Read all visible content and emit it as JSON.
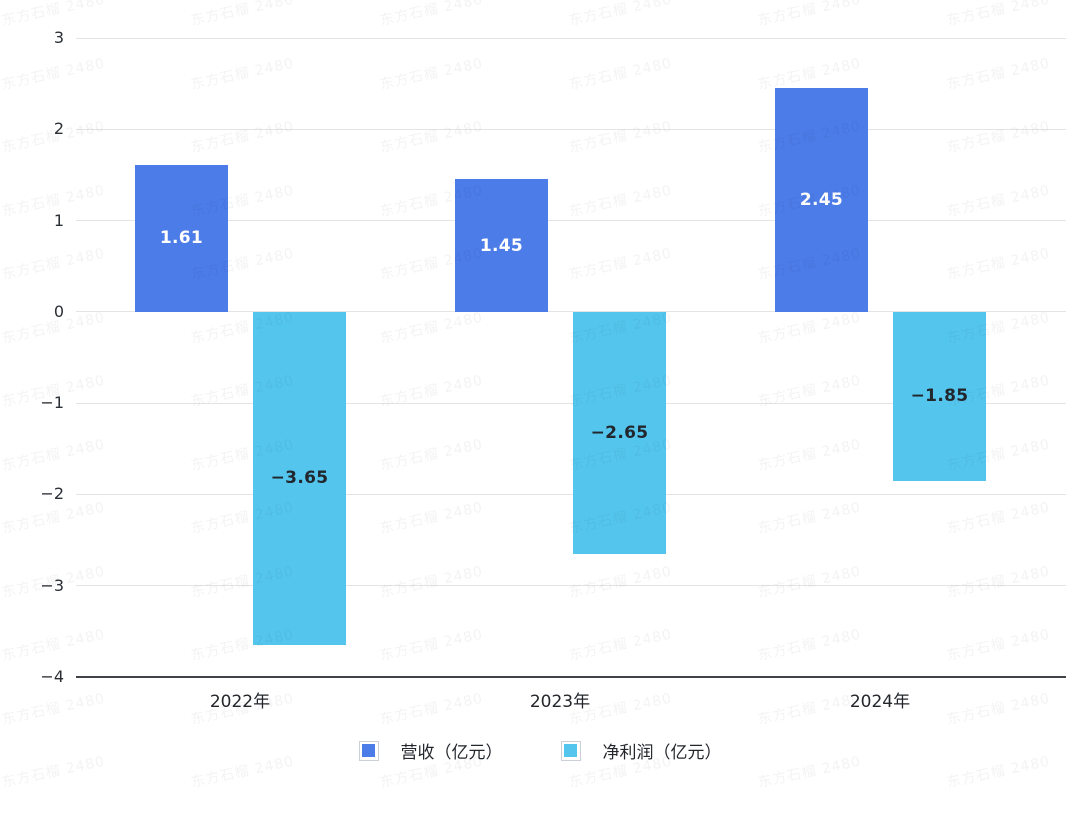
{
  "watermark": {
    "text": "东方石榴 2480",
    "color": "rgba(20,24,31,0.05)"
  },
  "chart_data": {
    "type": "bar",
    "categories": [
      "2022年",
      "2023年",
      "2024年"
    ],
    "series": [
      {
        "key": "revenue",
        "name": "营收（亿元）",
        "color": "#4c7ce8",
        "label_color": "#ffffff",
        "values": [
          1.61,
          1.45,
          2.45
        ],
        "labels": [
          "1.61",
          "1.45",
          "2.45"
        ]
      },
      {
        "key": "net-profit",
        "name": "净利润（亿元）",
        "color": "#54c6ee",
        "label_color": "#22262d",
        "values": [
          -3.65,
          -2.65,
          -1.85
        ],
        "labels": [
          "−3.65",
          "−2.65",
          "−1.85"
        ]
      }
    ],
    "title": "",
    "xlabel": "",
    "ylabel": "",
    "ylim": [
      -4,
      3
    ],
    "yticks": [
      {
        "value": 3,
        "label": "3"
      },
      {
        "value": 2,
        "label": "2"
      },
      {
        "value": 1,
        "label": "1"
      },
      {
        "value": 0,
        "label": "0"
      },
      {
        "value": -1,
        "label": "−1"
      },
      {
        "value": -2,
        "label": "−2"
      },
      {
        "value": -3,
        "label": "−3"
      },
      {
        "value": -4,
        "label": "−4"
      }
    ],
    "grid": true,
    "legend_position": "bottom"
  },
  "colors": {
    "background": "#ffffff",
    "gridline": "#e4e4e4",
    "axis_line": "#3f4246",
    "tick_text": "#2a2e35",
    "category_text": "#23262b",
    "legend_text": "#23262b"
  }
}
